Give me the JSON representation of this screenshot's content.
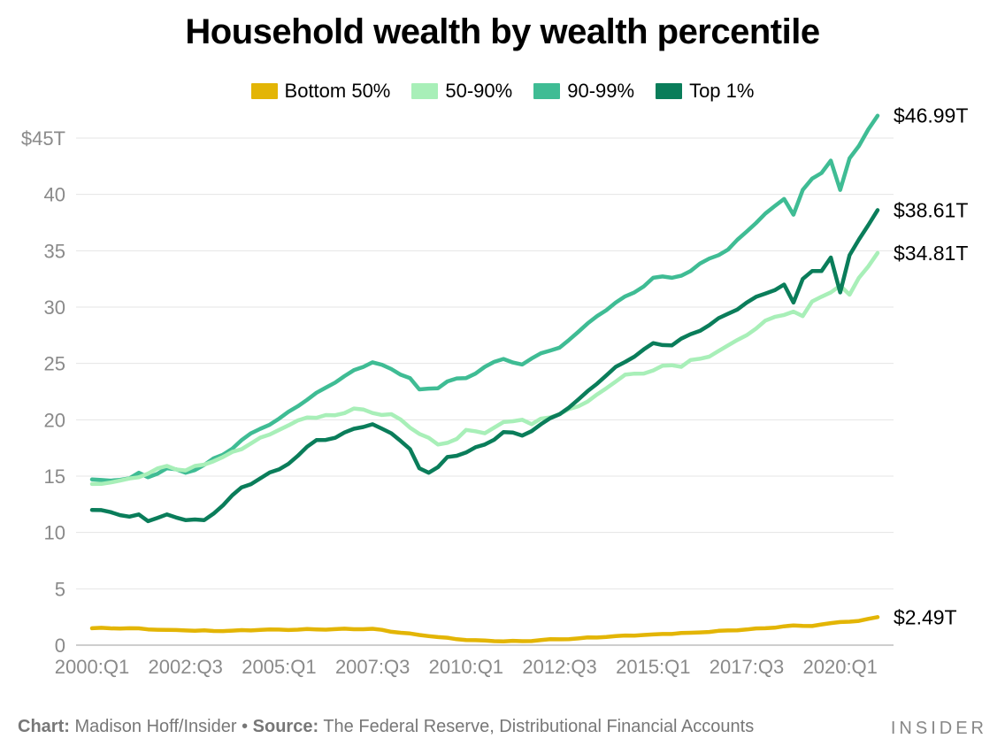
{
  "chart_data": {
    "type": "line",
    "title": "Household wealth by wealth percentile",
    "xlabel": "",
    "ylabel": "",
    "ylim": [
      0,
      47
    ],
    "y_ticks": [
      {
        "value": 0,
        "label": "0"
      },
      {
        "value": 5,
        "label": "5"
      },
      {
        "value": 10,
        "label": "10"
      },
      {
        "value": 15,
        "label": "15"
      },
      {
        "value": 20,
        "label": "20"
      },
      {
        "value": 25,
        "label": "25"
      },
      {
        "value": 30,
        "label": "30"
      },
      {
        "value": 35,
        "label": "35"
      },
      {
        "value": 40,
        "label": "40"
      },
      {
        "value": 45,
        "label": "$45T"
      }
    ],
    "x_ticks": [
      "2000:Q1",
      "2002:Q3",
      "2005:Q1",
      "2007:Q3",
      "2010:Q1",
      "2012:Q3",
      "2015:Q1",
      "2017:Q3",
      "2020:Q1"
    ],
    "x_tick_index": [
      0,
      10,
      20,
      30,
      40,
      50,
      60,
      70,
      80
    ],
    "grid": true,
    "legend_position": "top",
    "n_quarters": 85,
    "series": [
      {
        "name": "Bottom 50%",
        "color": "#e3b505",
        "end_label": "$2.49T",
        "anchors": [
          [
            0,
            1.5
          ],
          [
            4,
            1.5
          ],
          [
            8,
            1.35
          ],
          [
            10,
            1.3
          ],
          [
            14,
            1.25
          ],
          [
            18,
            1.35
          ],
          [
            24,
            1.4
          ],
          [
            30,
            1.45
          ],
          [
            33,
            1.1
          ],
          [
            36,
            0.8
          ],
          [
            40,
            0.45
          ],
          [
            43,
            0.35
          ],
          [
            46,
            0.35
          ],
          [
            48,
            0.45
          ],
          [
            52,
            0.6
          ],
          [
            56,
            0.8
          ],
          [
            60,
            0.95
          ],
          [
            64,
            1.1
          ],
          [
            68,
            1.3
          ],
          [
            72,
            1.5
          ],
          [
            75,
            1.75
          ],
          [
            77,
            1.7
          ],
          [
            80,
            2.05
          ],
          [
            82,
            2.15
          ],
          [
            84,
            2.49
          ]
        ]
      },
      {
        "name": "50-90%",
        "color": "#a8efb8",
        "end_label": "$34.81T",
        "anchors": [
          [
            0,
            14.3
          ],
          [
            3,
            14.6
          ],
          [
            5,
            14.9
          ],
          [
            8,
            15.9
          ],
          [
            10,
            15.5
          ],
          [
            14,
            16.7
          ],
          [
            17,
            17.9
          ],
          [
            20,
            19.1
          ],
          [
            23,
            20.2
          ],
          [
            26,
            20.4
          ],
          [
            28,
            21.0
          ],
          [
            30,
            20.6
          ],
          [
            32,
            20.5
          ],
          [
            34,
            19.3
          ],
          [
            36,
            18.4
          ],
          [
            37,
            17.8
          ],
          [
            39,
            18.3
          ],
          [
            40,
            19.1
          ],
          [
            42,
            18.8
          ],
          [
            44,
            19.8
          ],
          [
            46,
            20.0
          ],
          [
            47,
            19.6
          ],
          [
            48,
            20.1
          ],
          [
            50,
            20.5
          ],
          [
            52,
            21.2
          ],
          [
            55,
            22.8
          ],
          [
            57,
            24.0
          ],
          [
            59,
            24.1
          ],
          [
            61,
            24.8
          ],
          [
            63,
            24.7
          ],
          [
            64,
            25.3
          ],
          [
            66,
            25.6
          ],
          [
            68,
            26.6
          ],
          [
            70,
            27.5
          ],
          [
            72,
            28.8
          ],
          [
            74,
            29.3
          ],
          [
            75,
            29.6
          ],
          [
            76,
            29.2
          ],
          [
            77,
            30.5
          ],
          [
            79,
            31.3
          ],
          [
            80,
            31.9
          ],
          [
            81,
            31.1
          ],
          [
            82,
            32.6
          ],
          [
            84,
            34.81
          ]
        ]
      },
      {
        "name": "90-99%",
        "color": "#3fbc94",
        "end_label": "$46.99T",
        "anchors": [
          [
            0,
            14.7
          ],
          [
            2,
            14.6
          ],
          [
            4,
            14.8
          ],
          [
            5,
            15.3
          ],
          [
            6,
            14.9
          ],
          [
            8,
            15.7
          ],
          [
            10,
            15.3
          ],
          [
            12,
            16.0
          ],
          [
            14,
            16.9
          ],
          [
            16,
            18.2
          ],
          [
            18,
            19.2
          ],
          [
            20,
            20.1
          ],
          [
            22,
            21.2
          ],
          [
            24,
            22.4
          ],
          [
            26,
            23.3
          ],
          [
            28,
            24.4
          ],
          [
            30,
            25.1
          ],
          [
            32,
            24.5
          ],
          [
            34,
            23.7
          ],
          [
            35,
            22.7
          ],
          [
            37,
            22.8
          ],
          [
            38,
            23.4
          ],
          [
            40,
            23.7
          ],
          [
            42,
            24.7
          ],
          [
            44,
            25.4
          ],
          [
            46,
            24.9
          ],
          [
            48,
            25.9
          ],
          [
            50,
            26.4
          ],
          [
            52,
            27.8
          ],
          [
            54,
            29.2
          ],
          [
            56,
            30.4
          ],
          [
            58,
            31.3
          ],
          [
            60,
            32.6
          ],
          [
            62,
            32.6
          ],
          [
            64,
            33.2
          ],
          [
            66,
            34.3
          ],
          [
            68,
            35.1
          ],
          [
            70,
            36.7
          ],
          [
            72,
            38.3
          ],
          [
            74,
            39.6
          ],
          [
            75,
            38.2
          ],
          [
            76,
            40.4
          ],
          [
            77,
            41.4
          ],
          [
            78,
            41.9
          ],
          [
            79,
            43.0
          ],
          [
            80,
            40.4
          ],
          [
            81,
            43.2
          ],
          [
            82,
            44.3
          ],
          [
            84,
            46.99
          ]
        ]
      },
      {
        "name": "Top 1%",
        "color": "#0a7d5a",
        "end_label": "$38.61T",
        "anchors": [
          [
            0,
            12.0
          ],
          [
            2,
            11.8
          ],
          [
            4,
            11.4
          ],
          [
            5,
            11.6
          ],
          [
            6,
            11.0
          ],
          [
            8,
            11.6
          ],
          [
            10,
            11.1
          ],
          [
            12,
            11.1
          ],
          [
            14,
            12.4
          ],
          [
            16,
            14.0
          ],
          [
            18,
            14.8
          ],
          [
            20,
            15.6
          ],
          [
            22,
            16.8
          ],
          [
            24,
            18.2
          ],
          [
            26,
            18.4
          ],
          [
            28,
            19.2
          ],
          [
            30,
            19.6
          ],
          [
            32,
            18.8
          ],
          [
            34,
            17.4
          ],
          [
            35,
            15.7
          ],
          [
            36,
            15.3
          ],
          [
            37,
            15.8
          ],
          [
            38,
            16.7
          ],
          [
            40,
            17.1
          ],
          [
            42,
            17.8
          ],
          [
            44,
            18.9
          ],
          [
            46,
            18.6
          ],
          [
            48,
            19.6
          ],
          [
            50,
            20.5
          ],
          [
            52,
            21.8
          ],
          [
            54,
            23.2
          ],
          [
            56,
            24.7
          ],
          [
            58,
            25.6
          ],
          [
            60,
            26.8
          ],
          [
            62,
            26.6
          ],
          [
            64,
            27.6
          ],
          [
            66,
            28.4
          ],
          [
            68,
            29.4
          ],
          [
            70,
            30.4
          ],
          [
            72,
            31.2
          ],
          [
            74,
            32.0
          ],
          [
            75,
            30.4
          ],
          [
            76,
            32.5
          ],
          [
            77,
            33.2
          ],
          [
            78,
            33.2
          ],
          [
            79,
            34.4
          ],
          [
            80,
            31.3
          ],
          [
            81,
            34.6
          ],
          [
            82,
            36.0
          ],
          [
            84,
            38.61
          ]
        ]
      }
    ]
  },
  "footer": {
    "chart_label": "Chart:",
    "chart_author": "Madison Hoff/Insider",
    "separator": "•",
    "source_label": "Source:",
    "source_text": "The Federal Reserve, Distributional Financial Accounts",
    "brand": "INSIDER"
  }
}
